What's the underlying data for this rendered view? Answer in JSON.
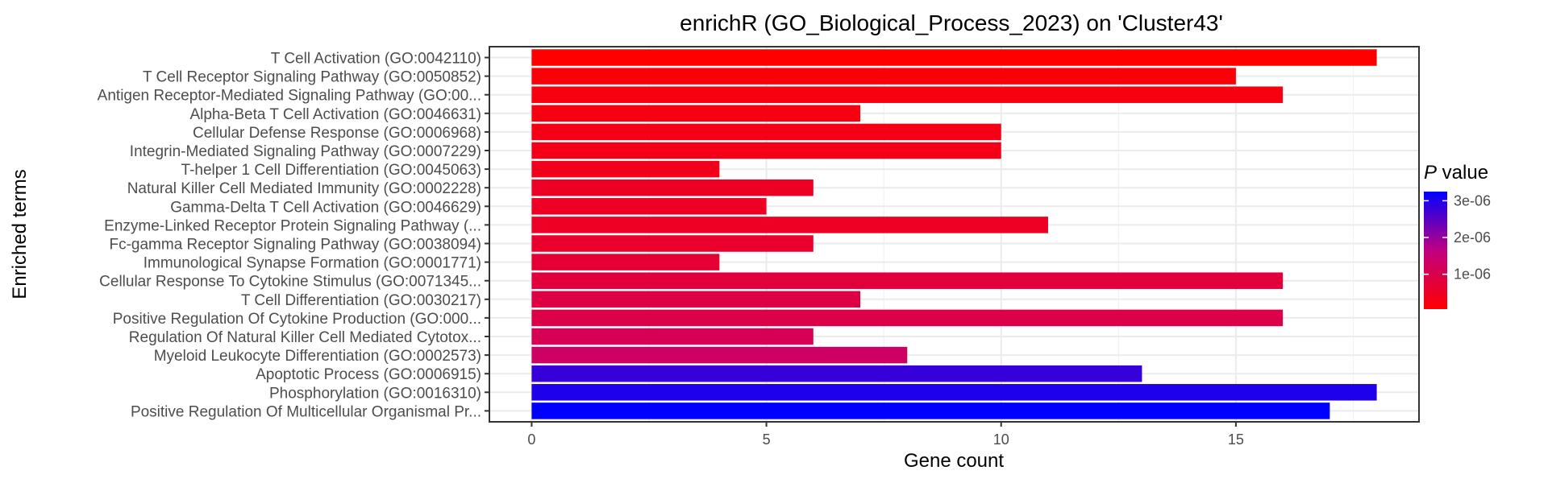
{
  "chart_data": {
    "type": "bar",
    "orientation": "horizontal",
    "title": "enrichR (GO_Biological_Process_2023) on 'Cluster43'",
    "xlabel": "Gene count",
    "ylabel": "Enriched terms",
    "xlim": [
      -0.9,
      18.9
    ],
    "xticks": [
      0,
      5,
      10,
      15
    ],
    "grid": true,
    "legend": {
      "title_italic": "P",
      "title_rest": " value",
      "placement": "right",
      "labels": [
        "3e-06",
        "2e-06",
        "1e-06"
      ],
      "label_values": [
        3e-06,
        2e-06,
        1e-06
      ],
      "range": [
        5e-08,
        3.25e-06
      ],
      "color_low": "#ff0000",
      "color_high": "#0000ff"
    },
    "categories": [
      "T Cell Activation (GO:0042110)",
      "T Cell Receptor Signaling Pathway (GO:0050852)",
      "Antigen Receptor-Mediated Signaling Pathway (GO:00...",
      "Alpha-Beta T Cell Activation (GO:0046631)",
      "Cellular Defense Response (GO:0006968)",
      "Integrin-Mediated Signaling Pathway (GO:0007229)",
      "T-helper 1 Cell Differentiation (GO:0045063)",
      "Natural Killer Cell Mediated Immunity (GO:0002228)",
      "Gamma-Delta T Cell Activation (GO:0046629)",
      "Enzyme-Linked Receptor Protein Signaling Pathway (...",
      "Fc-gamma Receptor Signaling Pathway (GO:0038094)",
      "Immunological Synapse Formation (GO:0001771)",
      "Cellular Response To Cytokine Stimulus (GO:0071345...",
      "T Cell Differentiation (GO:0030217)",
      "Positive Regulation Of Cytokine Production (GO:000...",
      "Regulation Of Natural Killer Cell Mediated Cytotox...",
      "Myeloid Leukocyte Differentiation (GO:0002573)",
      "Apoptotic Process (GO:0006915)",
      "Phosphorylation (GO:0016310)",
      "Positive Regulation Of Multicellular Organismal Pr..."
    ],
    "values": [
      18,
      15,
      16,
      7,
      10,
      10,
      4,
      6,
      5,
      11,
      6,
      4,
      16,
      7,
      16,
      6,
      8,
      13,
      18,
      17
    ],
    "p_values": [
      5e-08,
      1.5e-07,
      2.5e-07,
      2.5e-07,
      3e-07,
      3.5e-07,
      4e-07,
      5e-07,
      5e-07,
      5e-07,
      6e-07,
      7e-07,
      8e-07,
      9e-07,
      9.5e-07,
      1.1e-06,
      1.3e-06,
      2.8e-06,
      3e-06,
      3.25e-06
    ]
  }
}
